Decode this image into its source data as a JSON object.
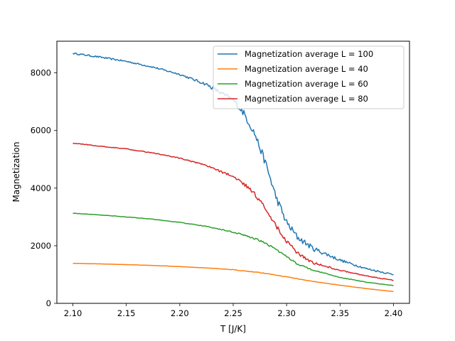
{
  "chart_data": {
    "type": "line",
    "title": "",
    "xlabel": "T [J/K]",
    "ylabel": "Magnetization",
    "xlim": [
      2.085,
      2.415
    ],
    "ylim": [
      0,
      9100
    ],
    "xticks": [
      2.1,
      2.15,
      2.2,
      2.25,
      2.3,
      2.35,
      2.4
    ],
    "xtick_labels": [
      "2.10",
      "2.15",
      "2.20",
      "2.25",
      "2.30",
      "2.35",
      "2.40"
    ],
    "yticks": [
      0,
      2000,
      4000,
      6000,
      8000
    ],
    "ytick_labels": [
      "0",
      "2000",
      "4000",
      "6000",
      "8000"
    ],
    "grid": false,
    "legend_position": "top-right",
    "x": [
      2.1,
      2.125,
      2.15,
      2.175,
      2.2,
      2.225,
      2.25,
      2.26,
      2.27,
      2.28,
      2.29,
      2.3,
      2.31,
      2.325,
      2.35,
      2.375,
      2.4
    ],
    "series": [
      {
        "name": "Magnetization average L = 100",
        "color": "#1f77b4",
        "values": [
          8680,
          8550,
          8400,
          8200,
          7950,
          7600,
          7050,
          6600,
          5900,
          4900,
          3700,
          2800,
          2300,
          1900,
          1500,
          1200,
          1000
        ],
        "noise": 110
      },
      {
        "name": "Magnetization average L = 40",
        "color": "#ff7f0e",
        "values": [
          1390,
          1370,
          1345,
          1315,
          1275,
          1230,
          1165,
          1130,
          1090,
          1040,
          985,
          920,
          855,
          760,
          630,
          510,
          410
        ],
        "noise": 10
      },
      {
        "name": "Magnetization average L = 60",
        "color": "#2ca02c",
        "values": [
          3130,
          3070,
          3000,
          2920,
          2810,
          2670,
          2470,
          2370,
          2250,
          2090,
          1880,
          1620,
          1370,
          1150,
          900,
          730,
          620
        ],
        "noise": 25
      },
      {
        "name": "Magnetization average L = 80",
        "color": "#d62728",
        "values": [
          5560,
          5460,
          5360,
          5220,
          5040,
          4780,
          4400,
          4150,
          3800,
          3300,
          2700,
          2150,
          1750,
          1400,
          1150,
          950,
          800
        ],
        "noise": 55
      }
    ]
  }
}
